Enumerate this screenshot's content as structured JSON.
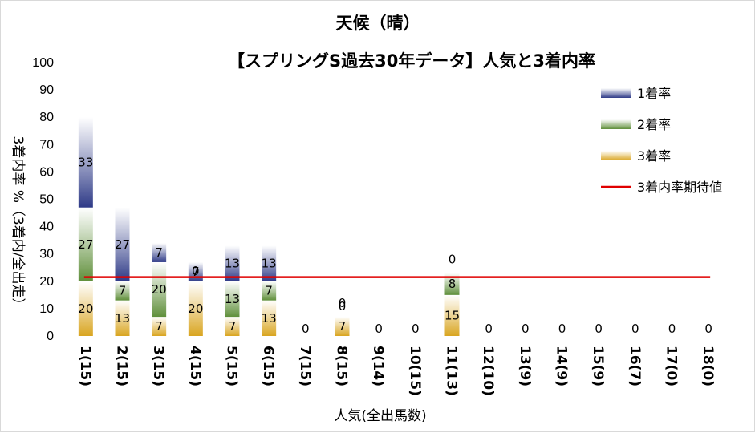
{
  "chart_data": {
    "type": "bar",
    "stacked": true,
    "title": "天候（晴）",
    "subtitle": "【スプリングS過去30年データ】人気と3着内率",
    "xlabel": "人気(全出馬数)",
    "ylabel": "3着内率 %（3着内/全出走）",
    "ylim": [
      0,
      100
    ],
    "yticks": [
      0,
      10,
      20,
      30,
      40,
      50,
      60,
      70,
      80,
      90,
      100
    ],
    "grid": false,
    "legend_position": "right",
    "categories": [
      "1(15)",
      "2(15)",
      "3(15)",
      "4(15)",
      "5(15)",
      "6(15)",
      "7(15)",
      "8(15)",
      "9(14)",
      "10(15)",
      "11(13)",
      "12(10)",
      "13(9)",
      "14(9)",
      "15(9)",
      "16(7)",
      "17(0)",
      "18(0)"
    ],
    "series": [
      {
        "name": "3着率",
        "values": [
          20,
          13,
          7,
          20,
          7,
          13,
          0,
          7,
          0,
          0,
          15,
          0,
          0,
          0,
          0,
          0,
          0,
          0
        ],
        "color": "#d9a520"
      },
      {
        "name": "2着率",
        "values": [
          27,
          7,
          20,
          0,
          13,
          7,
          0,
          0,
          0,
          0,
          8,
          0,
          0,
          0,
          0,
          0,
          0,
          0
        ],
        "color": "#5f8f3a"
      },
      {
        "name": "1着率",
        "values": [
          33,
          27,
          7,
          7,
          13,
          13,
          0,
          0,
          0,
          0,
          0,
          0,
          0,
          0,
          0,
          0,
          0,
          0
        ],
        "color": "#2e3a87"
      }
    ],
    "reference_line": {
      "name": "3着内率期待値",
      "value": 21.5,
      "color": "#e00000"
    }
  }
}
